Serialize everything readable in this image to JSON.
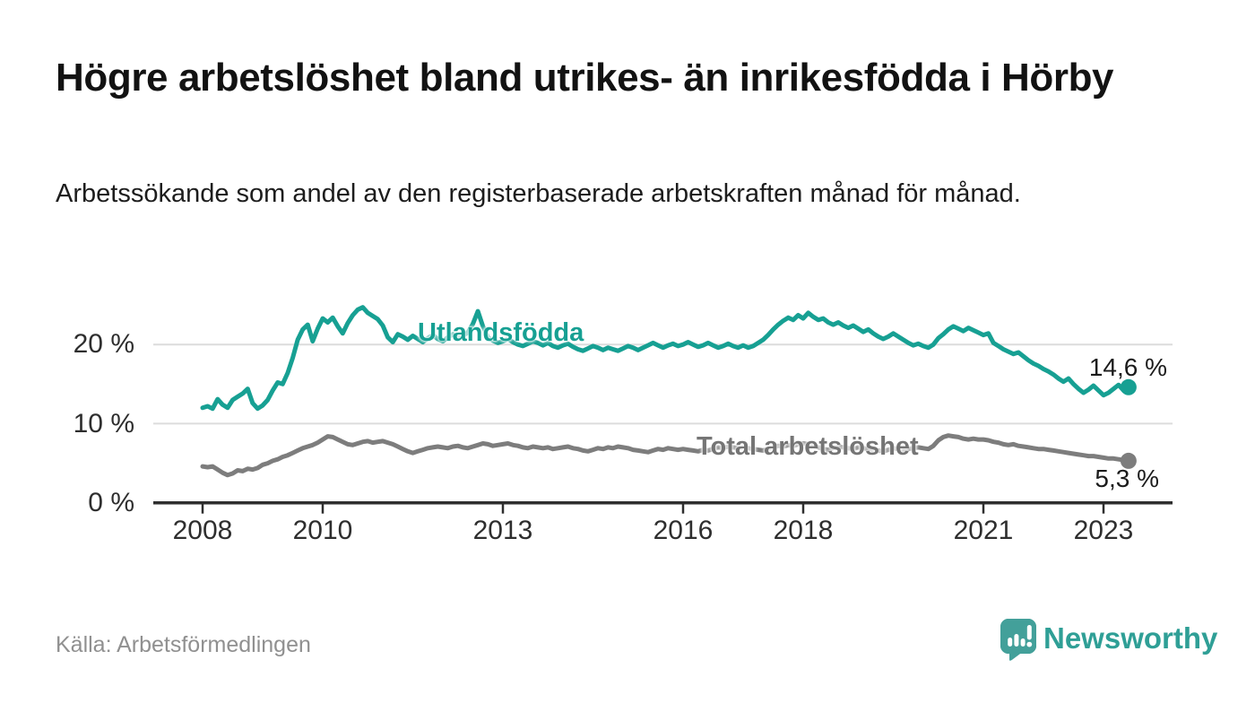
{
  "header": {
    "title": "Högre arbetslöshet bland utrikes- än inrikesfödda i Hörby",
    "subtitle": "Arbetssökande som andel av den registerbaserade arbetskraften månad för månad."
  },
  "footer": {
    "source": "Källa: Arbetsförmedlingen",
    "brand": "Newsworthy"
  },
  "colors": {
    "accent_teal": "#17a093",
    "line_gray": "#7d7d7d",
    "axis": "#2e2e2e",
    "grid": "#dcdcdc",
    "brand_teal": "#2f9f96",
    "source_gray": "#909090"
  },
  "chart_data": {
    "type": "line",
    "x_start_year": 2008,
    "x_step_months": 1,
    "x_end_label_note": "monthly data Jan 2008 – Jun 2023",
    "x_ticks": [
      2008,
      2010,
      2013,
      2016,
      2018,
      2021,
      2023
    ],
    "x_tick_labels": [
      "2008",
      "2010",
      "2013",
      "2016",
      "2018",
      "2021",
      "2023"
    ],
    "y_ticks": [
      0,
      10,
      20
    ],
    "y_tick_labels": [
      "0 %",
      "10 %",
      "20 %"
    ],
    "ylim": [
      0,
      26
    ],
    "grid": "horizontal",
    "legend_position": "inline-labels",
    "series": [
      {
        "name": "Utlandsfödda",
        "color": "#17a093",
        "end_label": "14,6 %",
        "end_value": 14.6,
        "values": [
          12.0,
          12.2,
          11.9,
          13.1,
          12.4,
          12.0,
          13.0,
          13.4,
          13.8,
          14.4,
          12.6,
          11.9,
          12.3,
          13.0,
          14.2,
          15.2,
          15.0,
          16.4,
          18.3,
          20.6,
          21.9,
          22.5,
          20.4,
          22.0,
          23.3,
          22.8,
          23.4,
          22.3,
          21.4,
          22.7,
          23.7,
          24.4,
          24.7,
          24.0,
          23.6,
          23.2,
          22.4,
          20.9,
          20.3,
          21.3,
          21.0,
          20.6,
          21.1,
          20.7,
          20.3,
          20.8,
          21.2,
          20.7,
          20.4,
          20.9,
          21.3,
          20.8,
          21.1,
          21.5,
          22.6,
          24.2,
          22.3,
          20.9,
          20.5,
          20.2,
          20.4,
          20.7,
          20.3,
          20.0,
          19.8,
          20.1,
          20.4,
          20.2,
          19.9,
          20.2,
          19.8,
          19.6,
          19.9,
          20.1,
          19.7,
          19.4,
          19.2,
          19.5,
          19.8,
          19.6,
          19.3,
          19.6,
          19.4,
          19.2,
          19.5,
          19.8,
          19.6,
          19.3,
          19.6,
          19.9,
          20.2,
          19.9,
          19.6,
          19.9,
          20.1,
          19.8,
          20.0,
          20.3,
          20.0,
          19.7,
          19.9,
          20.2,
          19.9,
          19.6,
          19.8,
          20.1,
          19.8,
          19.6,
          19.9,
          19.6,
          19.8,
          20.2,
          20.6,
          21.2,
          21.9,
          22.5,
          23.0,
          23.4,
          23.1,
          23.7,
          23.3,
          24.0,
          23.5,
          23.1,
          23.3,
          22.8,
          22.5,
          22.8,
          22.4,
          22.1,
          22.4,
          22.0,
          21.6,
          21.9,
          21.4,
          21.0,
          20.7,
          21.0,
          21.4,
          21.0,
          20.6,
          20.2,
          19.9,
          20.1,
          19.8,
          19.6,
          20.0,
          20.8,
          21.3,
          21.9,
          22.3,
          22.0,
          21.7,
          22.1,
          21.8,
          21.5,
          21.2,
          21.4,
          20.2,
          19.8,
          19.4,
          19.1,
          18.8,
          19.0,
          18.5,
          18.0,
          17.6,
          17.3,
          16.9,
          16.6,
          16.2,
          15.7,
          15.3,
          15.7,
          15.0,
          14.4,
          13.9,
          14.3,
          14.8,
          14.2,
          13.6,
          13.9,
          14.4,
          14.9,
          14.2,
          14.6
        ]
      },
      {
        "name": "Total arbetslöshet",
        "color": "#7d7d7d",
        "end_label": "5,3 %",
        "end_value": 5.3,
        "values": [
          4.6,
          4.5,
          4.6,
          4.2,
          3.8,
          3.5,
          3.7,
          4.1,
          4.0,
          4.3,
          4.2,
          4.4,
          4.8,
          5.0,
          5.3,
          5.5,
          5.8,
          6.0,
          6.3,
          6.6,
          6.9,
          7.1,
          7.3,
          7.6,
          8.0,
          8.4,
          8.3,
          8.0,
          7.7,
          7.4,
          7.3,
          7.5,
          7.7,
          7.8,
          7.6,
          7.7,
          7.8,
          7.6,
          7.4,
          7.1,
          6.8,
          6.5,
          6.3,
          6.5,
          6.7,
          6.9,
          7.0,
          7.1,
          7.0,
          6.9,
          7.1,
          7.2,
          7.0,
          6.9,
          7.1,
          7.3,
          7.5,
          7.4,
          7.2,
          7.3,
          7.4,
          7.5,
          7.3,
          7.2,
          7.0,
          6.9,
          7.1,
          7.0,
          6.9,
          7.0,
          6.8,
          6.9,
          7.0,
          7.1,
          6.9,
          6.8,
          6.6,
          6.5,
          6.7,
          6.9,
          6.8,
          7.0,
          6.9,
          7.1,
          7.0,
          6.9,
          6.7,
          6.6,
          6.5,
          6.4,
          6.6,
          6.8,
          6.7,
          6.9,
          6.8,
          6.7,
          6.8,
          6.7,
          6.6,
          6.5,
          6.7,
          6.6,
          6.8,
          7.0,
          6.9,
          7.1,
          7.0,
          6.9,
          7.0,
          6.9,
          6.8,
          6.7,
          6.6,
          6.8,
          7.0,
          7.2,
          7.1,
          7.3,
          7.2,
          7.4,
          7.5,
          7.4,
          7.2,
          7.0,
          6.8,
          6.7,
          6.9,
          7.1,
          7.0,
          6.9,
          6.8,
          7.0,
          6.9,
          6.8,
          6.7,
          6.6,
          6.5,
          6.7,
          6.9,
          6.8,
          6.7,
          6.8,
          6.9,
          7.0,
          6.9,
          6.8,
          7.2,
          7.9,
          8.3,
          8.5,
          8.4,
          8.3,
          8.1,
          8.0,
          8.1,
          8.0,
          8.0,
          7.9,
          7.7,
          7.6,
          7.4,
          7.3,
          7.4,
          7.2,
          7.1,
          7.0,
          6.9,
          6.8,
          6.8,
          6.7,
          6.6,
          6.5,
          6.4,
          6.3,
          6.2,
          6.1,
          6.0,
          5.9,
          5.9,
          5.8,
          5.7,
          5.6,
          5.6,
          5.5,
          5.4,
          5.3
        ]
      }
    ]
  }
}
